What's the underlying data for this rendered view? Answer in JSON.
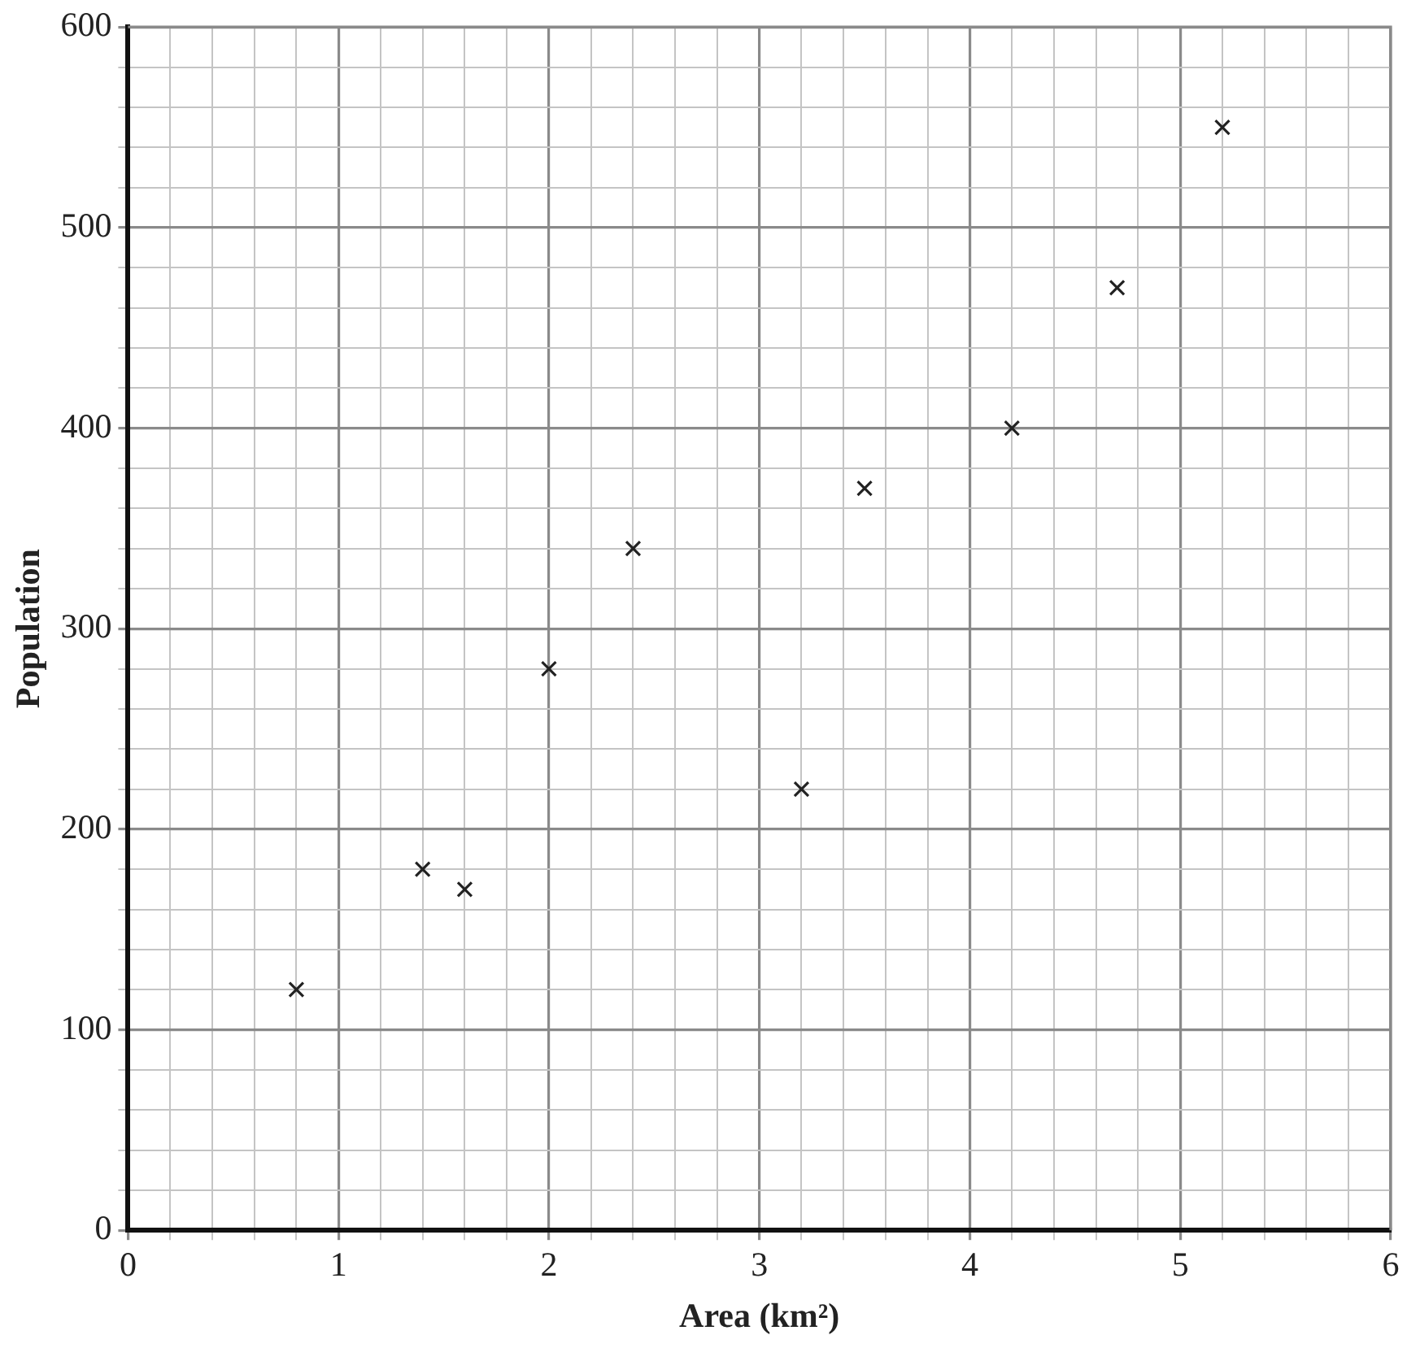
{
  "chart_data": {
    "type": "scatter",
    "xlabel": "Area (km²)",
    "ylabel": "Population",
    "x": [
      0.8,
      1.4,
      1.6,
      2,
      2.4,
      3.2,
      3.5,
      4.2,
      4.7,
      5.2
    ],
    "values": [
      120,
      180,
      170,
      280,
      340,
      220,
      370,
      400,
      470,
      550
    ],
    "color": "#222222",
    "marker": "cross",
    "grid": true,
    "legend": false,
    "xlim": [
      0,
      6
    ],
    "xticks": [
      0,
      {
        "value": 0.2,
        "label": null
      },
      {
        "value": 0.4,
        "label": null
      },
      {
        "value": 0.6,
        "label": null
      },
      {
        "value": 0.8,
        "label": null
      },
      1,
      {
        "value": 1.2,
        "label": null
      },
      {
        "value": 1.4,
        "label": null
      },
      {
        "value": 1.6,
        "label": null
      },
      {
        "value": 1.8,
        "label": null
      },
      2,
      {
        "value": 2.2,
        "label": null
      },
      {
        "value": 2.4,
        "label": null
      },
      {
        "value": 2.6,
        "label": null
      },
      {
        "value": 2.8,
        "label": null
      },
      3,
      {
        "value": 3.2,
        "label": null
      },
      {
        "value": 3.4,
        "label": null
      },
      {
        "value": 3.6,
        "label": null
      },
      {
        "value": 3.8,
        "label": null
      },
      4,
      {
        "value": 4.2,
        "label": null
      },
      {
        "value": 4.4,
        "label": null
      },
      {
        "value": 4.6,
        "label": null
      },
      {
        "value": 4.8,
        "label": null
      },
      5,
      {
        "value": 5.2,
        "label": null
      },
      {
        "value": 5.4,
        "label": null
      },
      {
        "value": 5.6,
        "label": null
      },
      {
        "value": 5.8,
        "label": null
      },
      6
    ],
    "ylim": [
      0,
      600
    ],
    "yticks": [
      0,
      {
        "value": 20,
        "label": null
      },
      {
        "value": 40,
        "label": null
      },
      {
        "value": 60,
        "label": null
      },
      {
        "value": 80,
        "label": null
      },
      100,
      {
        "value": 120,
        "label": null
      },
      {
        "value": 140,
        "label": null
      },
      {
        "value": 160,
        "label": null
      },
      {
        "value": 180,
        "label": null
      },
      200,
      {
        "value": 220,
        "label": null
      },
      {
        "value": 240,
        "label": null
      },
      {
        "value": 260,
        "label": null
      },
      {
        "value": 280,
        "label": null
      },
      300,
      {
        "value": 320,
        "label": null
      },
      {
        "value": 340,
        "label": null
      },
      {
        "value": 360,
        "label": null
      },
      {
        "value": 380,
        "label": null
      },
      400,
      {
        "value": 420,
        "label": null
      },
      {
        "value": 440,
        "label": null
      },
      {
        "value": 460,
        "label": null
      },
      {
        "value": 480,
        "label": null
      },
      500,
      {
        "value": 520,
        "label": null
      },
      {
        "value": 540,
        "label": null
      },
      {
        "value": 560,
        "label": null
      },
      {
        "value": 580,
        "label": null
      },
      600
    ]
  }
}
